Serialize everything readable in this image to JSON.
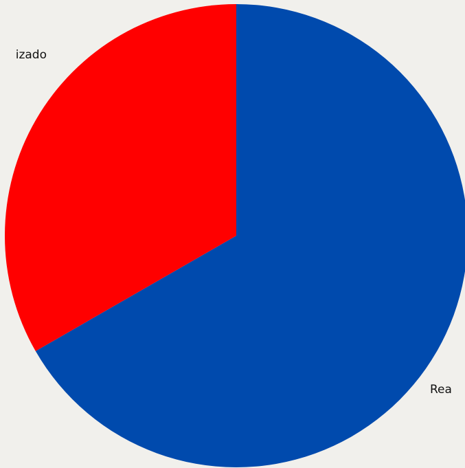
{
  "chart_data": {
    "type": "pie",
    "categories": [
      "Rea",
      "izado"
    ],
    "values": [
      66.7,
      33.3
    ],
    "colors": [
      "#004aad",
      "#ff0000"
    ]
  }
}
